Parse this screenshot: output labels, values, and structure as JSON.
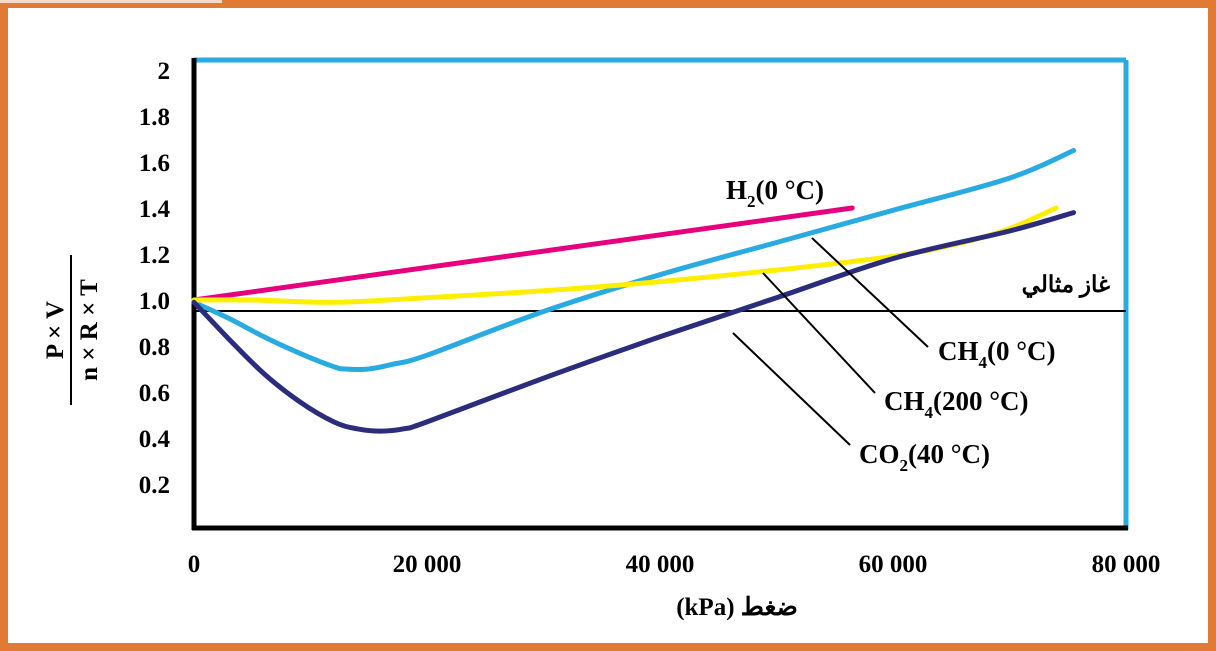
{
  "colors": {
    "frame": "#e07a35",
    "frame_top_left": "#fbd9c4",
    "plot_border": "#29abe2",
    "axis": "#000000",
    "h2": "#e6007e",
    "ch4_0": "#29abe2",
    "ch4_200": "#ffee00",
    "co2_40": "#2b2d7c",
    "ideal": "#000000"
  },
  "chart_data": {
    "type": "line",
    "xlabel": "ضغط (kPa)",
    "ylabel_numerator": "P × V",
    "ylabel_denominator": "n × R × T",
    "xlim": [
      0,
      80000
    ],
    "ylim": [
      0,
      2
    ],
    "x_ticks": [
      {
        "value": 0,
        "label": "0"
      },
      {
        "value": 20000,
        "label": "20 000"
      },
      {
        "value": 40000,
        "label": "40 000"
      },
      {
        "value": 60000,
        "label": "60 000"
      },
      {
        "value": 80000,
        "label": "80 000"
      }
    ],
    "y_ticks": [
      {
        "value": 0.2,
        "label": "0.2"
      },
      {
        "value": 0.4,
        "label": "0.4"
      },
      {
        "value": 0.6,
        "label": "0.6"
      },
      {
        "value": 0.8,
        "label": "0.8"
      },
      {
        "value": 1.0,
        "label": "1.0"
      },
      {
        "value": 1.2,
        "label": "1.2"
      },
      {
        "value": 1.4,
        "label": "1.4"
      },
      {
        "value": 1.6,
        "label": "1.6"
      },
      {
        "value": 1.8,
        "label": "1.8"
      },
      {
        "value": 2,
        "label": "2"
      }
    ],
    "ideal_line": {
      "y": 1.0,
      "label": "غاز مثالي"
    },
    "series": [
      {
        "key": "h2",
        "label_main": "H",
        "label_sub": "2",
        "label_rest": "(0 °C)",
        "color_key": "h2",
        "points": [
          [
            0,
            1.0
          ],
          [
            56500,
            1.4
          ]
        ]
      },
      {
        "key": "ch4_0",
        "label_main": "CH",
        "label_sub": "4",
        "label_rest": "(0 °C)",
        "color_key": "ch4_0",
        "points": [
          [
            0,
            0.99
          ],
          [
            3000,
            0.92
          ],
          [
            6000,
            0.84
          ],
          [
            9000,
            0.77
          ],
          [
            12000,
            0.71
          ],
          [
            13000,
            0.7
          ],
          [
            15000,
            0.7
          ],
          [
            17000,
            0.72
          ],
          [
            20000,
            0.76
          ],
          [
            30000,
            0.95
          ],
          [
            40000,
            1.11
          ],
          [
            50000,
            1.25
          ],
          [
            60000,
            1.39
          ],
          [
            70000,
            1.53
          ],
          [
            75500,
            1.65
          ]
        ]
      },
      {
        "key": "ch4_200",
        "label_main": "CH",
        "label_sub": "4",
        "label_rest": "(200 °C)",
        "color_key": "ch4_200",
        "points": [
          [
            0,
            1.0
          ],
          [
            5000,
            1.0
          ],
          [
            12000,
            0.99
          ],
          [
            20000,
            1.01
          ],
          [
            30000,
            1.04
          ],
          [
            40000,
            1.08
          ],
          [
            50000,
            1.13
          ],
          [
            60000,
            1.19
          ],
          [
            66000,
            1.25
          ],
          [
            70000,
            1.31
          ],
          [
            74000,
            1.4
          ]
        ]
      },
      {
        "key": "co2_40",
        "label_main": "CO",
        "label_sub": "2",
        "label_rest": "(40 °C)",
        "color_key": "co2_40",
        "points": [
          [
            0,
            0.99
          ],
          [
            3000,
            0.83
          ],
          [
            6000,
            0.68
          ],
          [
            9000,
            0.56
          ],
          [
            12000,
            0.47
          ],
          [
            14000,
            0.44
          ],
          [
            16000,
            0.43
          ],
          [
            18000,
            0.44
          ],
          [
            20000,
            0.47
          ],
          [
            30000,
            0.66
          ],
          [
            40000,
            0.84
          ],
          [
            50000,
            1.01
          ],
          [
            60000,
            1.18
          ],
          [
            70000,
            1.3
          ],
          [
            75500,
            1.38
          ]
        ]
      }
    ]
  }
}
